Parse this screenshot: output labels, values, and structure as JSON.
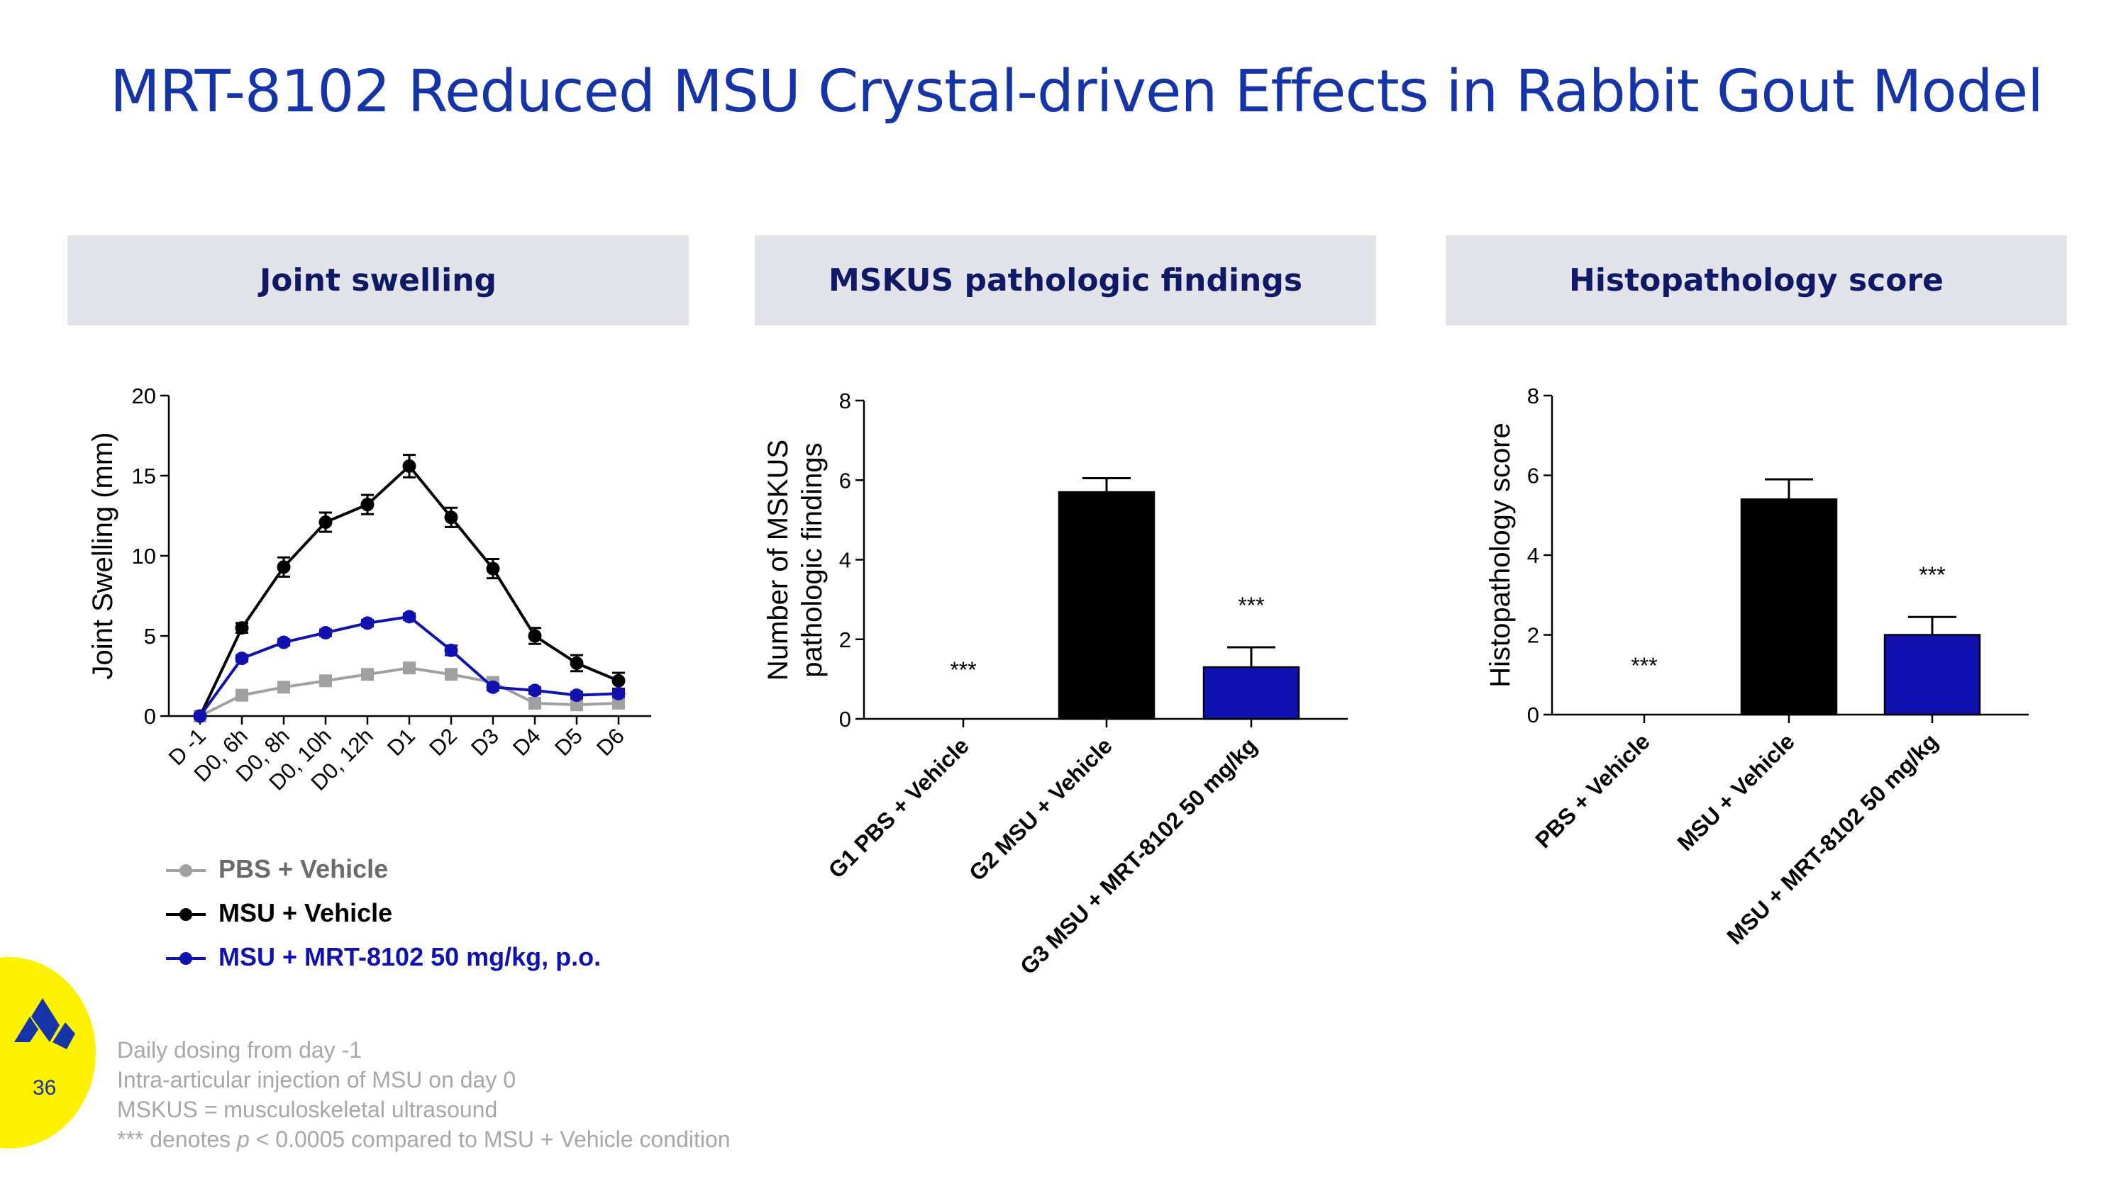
{
  "title": "MRT-8102 Reduced MSU Crystal-driven Effects in Rabbit Gout Model",
  "panels": {
    "p1": "Joint swelling",
    "p2": "MSKUS pathologic findings",
    "p3": "Histopathology score"
  },
  "legend": [
    {
      "label": "PBS + Vehicle",
      "color": "#a0a0a0",
      "marker": "circle"
    },
    {
      "label": "MSU + Vehicle",
      "color": "#000000",
      "marker": "circle"
    },
    {
      "label": "MSU + MRT-8102 50 mg/kg, p.o.",
      "color": "#1111b0",
      "marker": "circle"
    }
  ],
  "footnotes": {
    "f1": "Daily dosing from day -1",
    "f2": "Intra-articular injection of MSU on day 0",
    "f3": "MSKUS = musculoskeletal ultrasound",
    "f4_pre": "*** denotes ",
    "f4_p": "p",
    "f4_post": " < 0.0005 compared to MSU + Vehicle condition"
  },
  "page_number": "36",
  "chart_data": [
    {
      "type": "line",
      "title": "Joint swelling",
      "ylabel": "Joint Swelling (mm)",
      "xlabel": "",
      "ylim": [
        0,
        20
      ],
      "yticks": [
        0,
        5,
        10,
        15,
        20
      ],
      "categories": [
        "D -1",
        "D0, 6h",
        "D0, 8h",
        "D0, 10h",
        "D0, 12h",
        "D1",
        "D2",
        "D3",
        "D4",
        "D5",
        "D6"
      ],
      "series": [
        {
          "name": "PBS + Vehicle",
          "color": "#a0a0a0",
          "marker": "square",
          "values": [
            0,
            1.3,
            1.8,
            2.2,
            2.6,
            3.0,
            2.6,
            2.1,
            0.8,
            0.7,
            0.8
          ],
          "errors": [
            0,
            0.2,
            0.2,
            0.2,
            0.2,
            0.3,
            0.3,
            0.3,
            0.3,
            0.3,
            0.3
          ]
        },
        {
          "name": "MSU + Vehicle",
          "color": "#000000",
          "marker": "circle",
          "values": [
            0,
            5.5,
            9.3,
            12.1,
            13.2,
            15.6,
            12.4,
            9.2,
            5.0,
            3.3,
            2.2
          ],
          "errors": [
            0,
            0.3,
            0.6,
            0.6,
            0.6,
            0.7,
            0.6,
            0.6,
            0.5,
            0.5,
            0.5
          ]
        },
        {
          "name": "MSU + MRT-8102 50 mg/kg, p.o.",
          "color": "#1111b0",
          "marker": "circle",
          "values": [
            0,
            3.6,
            4.6,
            5.2,
            5.8,
            6.2,
            4.1,
            1.8,
            1.6,
            1.3,
            1.4
          ],
          "errors": [
            0,
            0.2,
            0.2,
            0.2,
            0.2,
            0.2,
            0.3,
            0.2,
            0.2,
            0.2,
            0.2
          ]
        }
      ]
    },
    {
      "type": "bar",
      "title": "MSKUS pathologic findings",
      "ylabel_line1": "Number of MSKUS",
      "ylabel_line2": "pathologic findings",
      "ylim": [
        0,
        8
      ],
      "yticks": [
        0,
        2,
        4,
        6,
        8
      ],
      "categories": [
        "G1 PBS + Vehicle",
        "G2 MSU + Vehicle",
        "G3 MSU + MRT-8102 50 mg/kg"
      ],
      "values": [
        0,
        5.7,
        1.3
      ],
      "errors": [
        0,
        0.35,
        0.5
      ],
      "colors": [
        "#000000",
        "#000000",
        "#1111b0"
      ],
      "annotations": [
        "***",
        "",
        "***"
      ]
    },
    {
      "type": "bar",
      "title": "Histopathology score",
      "ylabel": "Histopathology score",
      "ylim": [
        0,
        8
      ],
      "yticks": [
        0,
        2,
        4,
        6,
        8
      ],
      "categories": [
        "PBS + Vehicle",
        "MSU + Vehicle",
        "MSU + MRT-8102 50 mg/kg"
      ],
      "values": [
        0,
        5.4,
        2.0
      ],
      "errors": [
        0,
        0.5,
        0.45
      ],
      "colors": [
        "#000000",
        "#000000",
        "#1111b0"
      ],
      "annotations": [
        "***",
        "",
        "***"
      ]
    }
  ]
}
